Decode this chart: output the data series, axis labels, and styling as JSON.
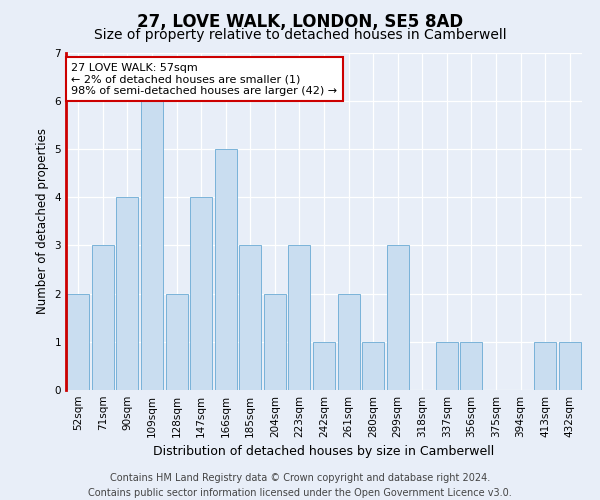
{
  "title": "27, LOVE WALK, LONDON, SE5 8AD",
  "subtitle": "Size of property relative to detached houses in Camberwell",
  "xlabel": "Distribution of detached houses by size in Camberwell",
  "ylabel": "Number of detached properties",
  "categories": [
    "52sqm",
    "71sqm",
    "90sqm",
    "109sqm",
    "128sqm",
    "147sqm",
    "166sqm",
    "185sqm",
    "204sqm",
    "223sqm",
    "242sqm",
    "261sqm",
    "280sqm",
    "299sqm",
    "318sqm",
    "337sqm",
    "356sqm",
    "375sqm",
    "394sqm",
    "413sqm",
    "432sqm"
  ],
  "values": [
    2,
    3,
    4,
    6,
    2,
    4,
    5,
    3,
    2,
    3,
    1,
    2,
    1,
    3,
    0,
    1,
    1,
    0,
    0,
    1,
    1
  ],
  "bar_color": "#c9ddf0",
  "bar_edge_color": "#6aaad4",
  "annotation_line1": "27 LOVE WALK: 57sqm",
  "annotation_line2": "← 2% of detached houses are smaller (1)",
  "annotation_line3": "98% of semi-detached houses are larger (42) →",
  "ylim": [
    0,
    7
  ],
  "yticks": [
    0,
    1,
    2,
    3,
    4,
    5,
    6,
    7
  ],
  "footer_line1": "Contains HM Land Registry data © Crown copyright and database right 2024.",
  "footer_line2": "Contains public sector information licensed under the Open Government Licence v3.0.",
  "background_color": "#e8eef8",
  "plot_background_color": "#e8eef8",
  "title_fontsize": 12,
  "subtitle_fontsize": 10,
  "tick_fontsize": 7.5,
  "annotation_fontsize": 8,
  "footer_fontsize": 7,
  "xlabel_fontsize": 9,
  "ylabel_fontsize": 8.5
}
